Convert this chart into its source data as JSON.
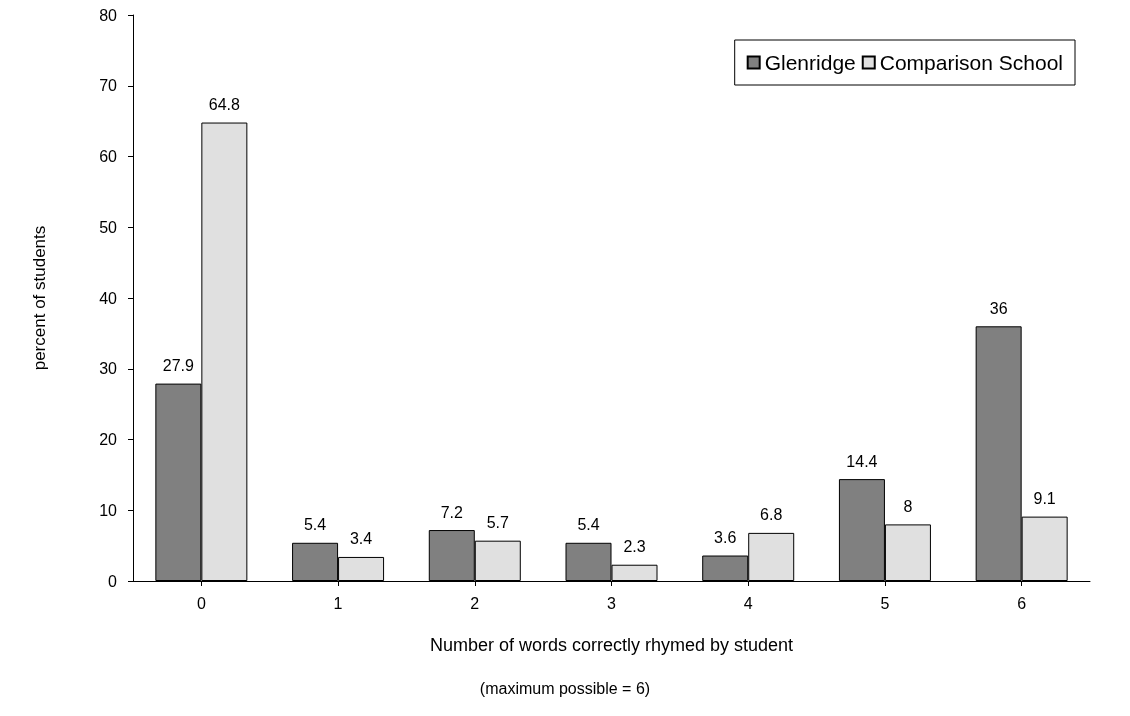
{
  "chart_data": {
    "type": "bar",
    "xlabel": "Number of words correctly rhymed by student",
    "ylabel": "percent of students",
    "annotations": [
      "(maximum possible = 6)"
    ],
    "categories": [
      "0",
      "1",
      "2",
      "3",
      "4",
      "5",
      "6"
    ],
    "series": [
      {
        "name": "Glenridge",
        "color": "#808080",
        "values": [
          27.9,
          5.4,
          7.2,
          5.4,
          3.6,
          14.4,
          36
        ]
      },
      {
        "name": "Comparison School",
        "color": "#e0e0e0",
        "values": [
          64.8,
          3.4,
          5.7,
          2.3,
          6.8,
          8,
          9.1
        ]
      }
    ],
    "ylim": [
      0,
      80
    ],
    "yticks": [
      0,
      10,
      20,
      30,
      40,
      50,
      60,
      70,
      80
    ],
    "grid": false,
    "legend": "top right",
    "data_labels": true
  }
}
